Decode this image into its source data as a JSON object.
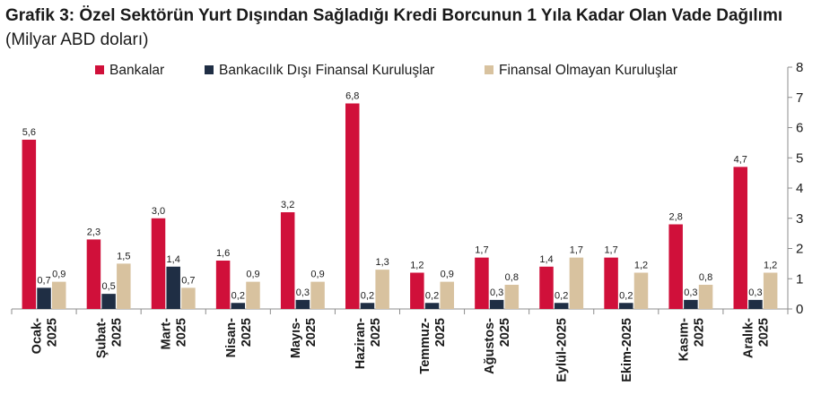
{
  "title": {
    "bold": "Grafik 3: Özel Sektörün Yurt Dışından Sağladığı Kredi Borcunun 1 Yıla Kadar Olan Vade Dağılımı",
    "unit": "(Milyar ABD doları)"
  },
  "chart_data": {
    "type": "bar",
    "categories": [
      [
        "Ocak-",
        "2025"
      ],
      [
        "Şubat-",
        "2025"
      ],
      [
        "Mart-",
        "2025"
      ],
      [
        "Nisan-",
        "2025"
      ],
      [
        "Mayıs-",
        "2025"
      ],
      [
        "Haziran-",
        "2025"
      ],
      [
        "Temmuz-",
        "2025"
      ],
      [
        "Ağustos-",
        "2025"
      ],
      [
        "Eylül-2025"
      ],
      [
        "Ekim-2025"
      ],
      [
        "Kasım-",
        "2025"
      ],
      [
        "Aralık-",
        "2025"
      ]
    ],
    "series": [
      {
        "name": "Bankalar",
        "color": "#d0103a",
        "values": [
          5.6,
          2.3,
          3.0,
          1.6,
          3.2,
          6.8,
          1.2,
          1.7,
          1.4,
          1.7,
          2.8,
          4.7
        ],
        "labels": [
          "5,6",
          "2,3",
          "3,0",
          "1,6",
          "3,2",
          "6,8",
          "1,2",
          "1,7",
          "1,4",
          "1,7",
          "2,8",
          "4,7"
        ]
      },
      {
        "name": "Bankacılık Dışı Finansal Kuruluşlar",
        "color": "#1f2e44",
        "values": [
          0.7,
          0.5,
          1.4,
          0.2,
          0.3,
          0.2,
          0.2,
          0.3,
          0.2,
          0.2,
          0.3,
          0.3
        ],
        "labels": [
          "0,7",
          "0,5",
          "1,4",
          "0,2",
          "0,3",
          "0,2",
          "0,2",
          "0,3",
          "0,2",
          "0,2",
          "0,3",
          "0,3"
        ]
      },
      {
        "name": "Finansal Olmayan Kuruluşlar",
        "color": "#d8c29f",
        "values": [
          0.9,
          1.5,
          0.7,
          0.9,
          0.9,
          1.3,
          0.9,
          0.8,
          1.7,
          1.2,
          0.8,
          1.2
        ],
        "labels": [
          "0,9",
          "1,5",
          "0,7",
          "0,9",
          "0,9",
          "1,3",
          "0,9",
          "0,8",
          "1,7",
          "1,2",
          "0,8",
          "1,2"
        ]
      }
    ],
    "yticks": [
      "0",
      "1",
      "2",
      "3",
      "4",
      "5",
      "6",
      "7",
      "8"
    ],
    "ylim": [
      0,
      8
    ],
    "y_axis_side": "right",
    "grid": false,
    "legend_position": "top"
  }
}
